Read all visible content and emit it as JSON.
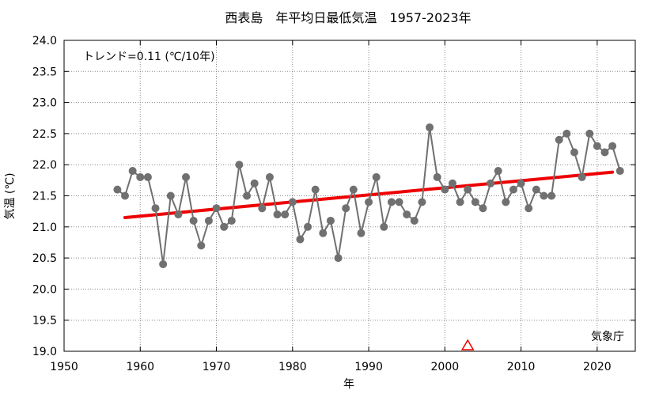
{
  "chart_data": {
    "type": "line",
    "title": "西表島　年平均日最低気温　1957-2023年",
    "xlabel": "年",
    "ylabel": "気温 (℃)",
    "xlim": [
      1950,
      2025
    ],
    "ylim": [
      19.0,
      24.0
    ],
    "x_ticks": [
      "1950",
      "1960",
      "1970",
      "1980",
      "1990",
      "2000",
      "2010",
      "2020"
    ],
    "y_ticks": [
      "19.0",
      "19.5",
      "20.0",
      "20.5",
      "21.0",
      "21.5",
      "22.0",
      "22.5",
      "23.0",
      "23.5",
      "24.0"
    ],
    "grid": true,
    "series": [
      {
        "color": "#707070",
        "x": [
          1957,
          1958,
          1959,
          1960,
          1961,
          1962,
          1963,
          1964,
          1965,
          1966,
          1967,
          1968,
          1969,
          1970,
          1971,
          1972,
          1973,
          1974,
          1975,
          1976,
          1977,
          1978,
          1979,
          1980,
          1981,
          1982,
          1983,
          1984,
          1985,
          1986,
          1987,
          1988,
          1989,
          1990,
          1991,
          1992,
          1993,
          1994,
          1995,
          1996,
          1997,
          1998,
          1999,
          2000,
          2001,
          2002,
          2003,
          2004,
          2005,
          2006,
          2007,
          2008,
          2009,
          2010,
          2011,
          2012,
          2013,
          2014,
          2015,
          2016,
          2017,
          2018,
          2019,
          2020,
          2021,
          2022,
          2023
        ],
        "values": [
          21.6,
          21.5,
          21.9,
          21.8,
          21.8,
          21.3,
          20.4,
          21.5,
          21.2,
          21.8,
          21.1,
          20.7,
          21.1,
          21.3,
          21.0,
          21.1,
          22.0,
          21.5,
          21.7,
          21.3,
          21.8,
          21.2,
          21.2,
          21.4,
          20.8,
          21.0,
          21.6,
          20.9,
          21.1,
          20.5,
          21.3,
          21.6,
          20.9,
          21.4,
          21.8,
          21.0,
          21.4,
          21.4,
          21.2,
          21.1,
          21.4,
          22.6,
          21.8,
          21.6,
          21.7,
          21.4,
          21.6,
          21.4,
          21.3,
          21.7,
          21.9,
          21.4,
          21.6,
          21.7,
          21.3,
          21.6,
          21.5,
          21.5,
          22.4,
          22.5,
          22.2,
          21.8,
          22.5,
          22.3,
          22.2,
          22.3,
          21.9
        ]
      }
    ],
    "trend": {
      "color": "#ee0000",
      "x": [
        1958,
        2022
      ],
      "values": [
        21.15,
        21.88
      ]
    },
    "trend_text": "トレンド=0.11 (℃/10年)",
    "marker": {
      "x": 2003,
      "symbol": "triangle",
      "color": "#ee0000"
    },
    "source": "気象庁"
  }
}
